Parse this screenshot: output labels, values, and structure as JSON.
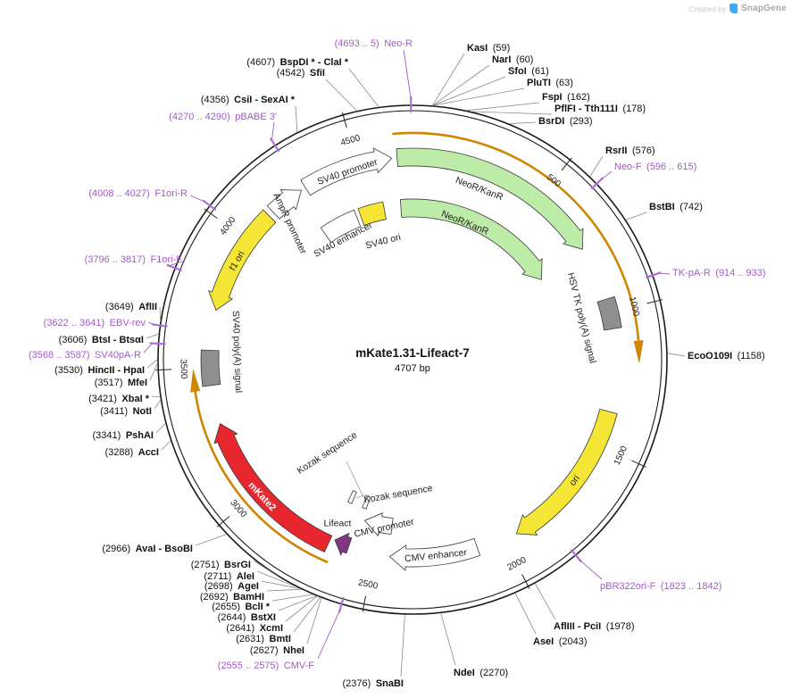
{
  "watermark": {
    "prefix": "Created by",
    "brand": "SnapGene"
  },
  "plasmid": {
    "name": "mKate1.31-Lifeact-7",
    "size": "4707 bp",
    "length": 4707
  },
  "scale_ticks": [
    500,
    1000,
    1500,
    2000,
    2500,
    3000,
    3500,
    4000,
    4500
  ],
  "colors": {
    "primer": "#A35BC8",
    "primer_tick": "#B06FD8",
    "enzyme_line": "#8a8a8a",
    "gene_arc": "#CE8500",
    "backbone": "#1a1a1a",
    "cds_green": "#BDEBA8",
    "yellow": "#F5E636",
    "red": "#E8262D",
    "gray_box": "#8F8F8F",
    "lifeact_purple": "#803585"
  },
  "features": [
    {
      "label": "SV40 promoter",
      "start": 4290,
      "end": 4630,
      "direction": "cw",
      "kind": "promoter",
      "fill": "#FFFFFF"
    },
    {
      "label": "AmpR promoter",
      "start": 4140,
      "end": 4272,
      "direction": "cw",
      "kind": "promoter",
      "fill": "#FFFFFF"
    },
    {
      "label": "NeoR/KanR",
      "start": 4650,
      "end": 745,
      "direction": "cw",
      "kind": "cds",
      "fill": "#BDEBA8"
    },
    {
      "label": "NeoR/KanR",
      "start": 4650,
      "end": 760,
      "direction": "cw",
      "kind": "cds",
      "fill": "#BDEBA8"
    },
    {
      "label": "SV40 enhancer",
      "start": 4252,
      "end": 4428,
      "direction": "none",
      "kind": "enhancer",
      "fill": "#FFFFFF"
    },
    {
      "label": "SV40 ori",
      "start": 4448,
      "end": 4568,
      "direction": "none",
      "kind": "ori",
      "fill": "#F5E636"
    },
    {
      "label": "HSV TK poly(A) signal",
      "start": 950,
      "end": 1062,
      "direction": "none",
      "kind": "polyA",
      "fill": "#8F8F8F"
    },
    {
      "label": "ori",
      "start": 1370,
      "end": 1950,
      "direction": "cw",
      "kind": "ori",
      "fill": "#F5E636"
    },
    {
      "label": "CMV enhancer",
      "start": 2105,
      "end": 2440,
      "direction": "cw",
      "kind": "enhancer",
      "fill": "#FFFFFF"
    },
    {
      "label": "CMV promoter",
      "start": 2445,
      "end": 2570,
      "direction": "cw",
      "kind": "promoter",
      "fill": "#FFFFFF"
    },
    {
      "label": "Kozak sequence",
      "start": 2578,
      "end": 2598,
      "direction": "none",
      "kind": "marker",
      "fill": "#FFFFFF"
    },
    {
      "label": "Lifeact",
      "start": 2600,
      "end": 2658,
      "direction": "cw",
      "kind": "misc",
      "fill": "#803585"
    },
    {
      "label": "Kozak sequence",
      "start": 2653,
      "end": 2673,
      "direction": "none",
      "kind": "marker",
      "fill": "#FFFFFF"
    },
    {
      "label": "mKate2",
      "start": 2675,
      "end": 3290,
      "direction": "cw",
      "kind": "cds",
      "fill": "#E8262D"
    },
    {
      "label": "SV40 poly(A) signal",
      "start": 3435,
      "end": 3565,
      "direction": "none",
      "kind": "polyA",
      "fill": "#8F8F8F"
    },
    {
      "label": "f1 ori",
      "start": 3715,
      "end": 4120,
      "direction": "ccw",
      "kind": "ori",
      "fill": "#F5E636"
    },
    {
      "label": "",
      "start": 4640,
      "end": 1190,
      "direction": "cw",
      "kind": "gene-arc",
      "fill": "#CE8500"
    },
    {
      "label": "",
      "start": 2650,
      "end": 3500,
      "direction": "cw",
      "kind": "gene-arc",
      "fill": "#CE8500"
    }
  ],
  "enzyme_sites": [
    {
      "name": "KasI",
      "loc": "59"
    },
    {
      "name": "NarI",
      "loc": "60"
    },
    {
      "name": "SfoI",
      "loc": "61"
    },
    {
      "name": "PluTI",
      "loc": "63"
    },
    {
      "name": "FspI",
      "loc": "162"
    },
    {
      "name": "PflFI - Tth111I",
      "loc": "178"
    },
    {
      "name": "BsrDI",
      "loc": "293"
    },
    {
      "name": "RsrII",
      "loc": "576"
    },
    {
      "name": "BstBI",
      "loc": "742"
    },
    {
      "name": "EcoO109I",
      "loc": "1158"
    },
    {
      "name": "AflIII - PciI",
      "loc": "1978"
    },
    {
      "name": "AseI",
      "loc": "2043"
    },
    {
      "name": "NdeI",
      "loc": "2270"
    },
    {
      "name": "SnaBI",
      "loc": "2376"
    },
    {
      "name": "NheI",
      "loc": "2627"
    },
    {
      "name": "BmtI",
      "loc": "2631"
    },
    {
      "name": "XcmI",
      "loc": "2641"
    },
    {
      "name": "BstXI",
      "loc": "2644"
    },
    {
      "name": "BclI *",
      "loc": "2655"
    },
    {
      "name": "BamHI",
      "loc": "2692"
    },
    {
      "name": "AgeI",
      "loc": "2698"
    },
    {
      "name": "AleI",
      "loc": "2711"
    },
    {
      "name": "BsrGI",
      "loc": "2751"
    },
    {
      "name": "AvaI - BsoBI",
      "loc": "2966"
    },
    {
      "name": "AccI",
      "loc": "3288"
    },
    {
      "name": "PshAI",
      "loc": "3341"
    },
    {
      "name": "NotI",
      "loc": "3411"
    },
    {
      "name": "XbaI *",
      "loc": "3421"
    },
    {
      "name": "MfeI",
      "loc": "3517"
    },
    {
      "name": "HincII - HpaI",
      "loc": "3530"
    },
    {
      "name": "BtsI - BtsαI",
      "loc": "3606"
    },
    {
      "name": "AflII",
      "loc": "3649"
    },
    {
      "name": "CsiI - SexAI *",
      "loc": "4356"
    },
    {
      "name": "SfiI",
      "loc": "4542"
    },
    {
      "name": "BspDI * - ClaI *",
      "loc": "4607"
    }
  ],
  "primers": [
    {
      "name": "Neo-R",
      "loc": "4693 .. 5"
    },
    {
      "name": "Neo-F",
      "loc": "596 .. 615"
    },
    {
      "name": "TK-pA-R",
      "loc": "914 .. 933"
    },
    {
      "name": "pBR322ori-F",
      "loc": "1823 .. 1842"
    },
    {
      "name": "CMV-F",
      "loc": "2555 .. 2575"
    },
    {
      "name": "SV40pA-R",
      "loc": "3568 .. 3587"
    },
    {
      "name": "EBV-rev",
      "loc": "3622 .. 3641"
    },
    {
      "name": "F1ori-F",
      "loc": "3796 .. 3817"
    },
    {
      "name": "F1ori-R",
      "loc": "4008 .. 4027"
    },
    {
      "name": "pBABE 3'",
      "loc": "4270 .. 4290"
    }
  ]
}
